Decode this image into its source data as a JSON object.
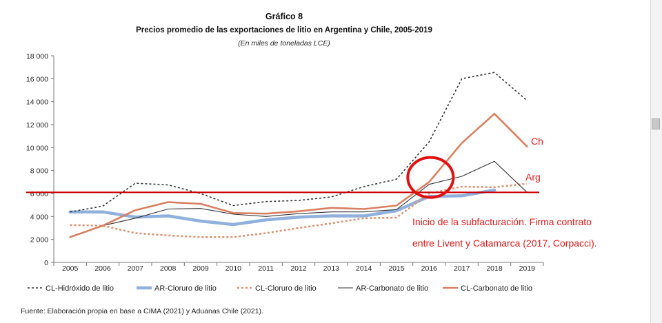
{
  "chart_data": {
    "type": "line",
    "title": "Gráfico 8",
    "subtitle": "Precios promedio de las exportaciones de litio en Argentina y Chile, 2005-2019",
    "unit_note": "(En miles de toneladas LCE)",
    "categories": [
      "2005",
      "2006",
      "2007",
      "2008",
      "2009",
      "2010",
      "2011",
      "2012",
      "2013",
      "2014",
      "2015",
      "2016",
      "2017",
      "2018",
      "2019"
    ],
    "ylim": [
      0,
      18000
    ],
    "y_ticks": [
      "0",
      "2 000",
      "4 000",
      "6 000",
      "8 000",
      "10 000",
      "12 000",
      "14 000",
      "16 000",
      "18 000"
    ],
    "y_tick_values": [
      0,
      2000,
      4000,
      6000,
      8000,
      10000,
      12000,
      14000,
      16000,
      18000
    ],
    "grid": false,
    "legend_position": "bottom",
    "series": [
      {
        "name": "CL-Hidróxido de litio",
        "color": "#333333",
        "style": "dotted",
        "values": [
          4400,
          4900,
          6900,
          6750,
          6000,
          4950,
          5300,
          5400,
          5700,
          6600,
          7250,
          10500,
          16000,
          16550,
          14100
        ]
      },
      {
        "name": "AR-Cloruro de litio",
        "color": "#8fb1dc",
        "style": "thick",
        "values": [
          4400,
          4400,
          3950,
          4050,
          3600,
          3300,
          3700,
          3950,
          4050,
          4050,
          4500,
          5750,
          5800,
          6300,
          null
        ]
      },
      {
        "name": "CL-Cloruro de litio",
        "color": "#e0906e",
        "style": "dotted-thick",
        "values": [
          3250,
          3200,
          2550,
          2350,
          2200,
          2200,
          2550,
          3000,
          3400,
          3850,
          3900,
          6000,
          6600,
          6550,
          6850
        ]
      },
      {
        "name": "AR-Carbonato de litio",
        "color": "#333333",
        "style": "thin",
        "values": [
          2250,
          3200,
          3850,
          4650,
          4700,
          4200,
          4000,
          4250,
          4400,
          4400,
          4600,
          6800,
          7500,
          8800,
          6100
        ]
      },
      {
        "name": "CL-Carbonato de litio",
        "color": "#d87f60",
        "style": "solid",
        "values": [
          2200,
          3200,
          4550,
          5250,
          5100,
          4300,
          4250,
          4450,
          4750,
          4650,
          4950,
          7000,
          10400,
          12950,
          10100
        ]
      }
    ],
    "reference_line": {
      "value": 6100,
      "color": "#cc0000"
    },
    "annotations": {
      "ch_label": "Ch",
      "arg_label": "Arg",
      "note_line1": "Inicio de la subfacturación. Firma contrato",
      "note_line2": "entre Livent y Catamarca (2017, Corpacci).",
      "circle_year": "2016"
    }
  },
  "source": "Fuente: Elaboración propia en base a CIMA (2021) y Aduanas Chile (2021)."
}
